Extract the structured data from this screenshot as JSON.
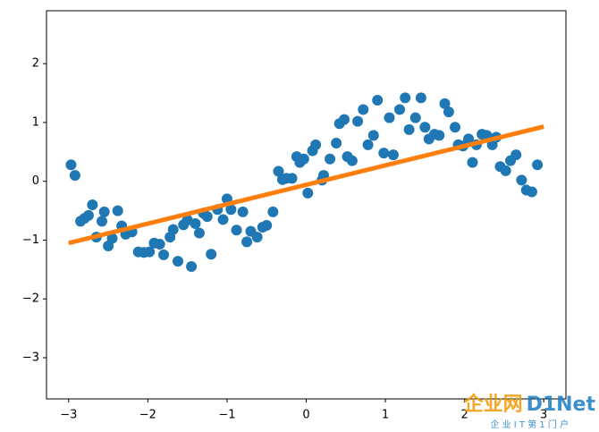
{
  "chart_data": {
    "type": "scatter",
    "xlim": [
      -3.28,
      3.28
    ],
    "ylim": [
      -3.7,
      2.9
    ],
    "xticks": [
      {
        "value": -3,
        "label": "−3"
      },
      {
        "value": -2,
        "label": "−2"
      },
      {
        "value": -1,
        "label": "−1"
      },
      0,
      1,
      2,
      3
    ],
    "yticks": [
      {
        "value": -3,
        "label": "−3"
      },
      {
        "value": -2,
        "label": "−2"
      },
      {
        "value": -1,
        "label": "−1"
      },
      0,
      1,
      2
    ],
    "series": [
      {
        "type": "scatter",
        "color": "#1f77b4",
        "x": [
          -2.97,
          -2.92,
          -2.85,
          -2.8,
          -2.75,
          -2.7,
          -2.65,
          -2.58,
          -2.55,
          -2.5,
          -2.45,
          -2.38,
          -2.33,
          -2.28,
          -2.2,
          -2.12,
          -2.05,
          -1.98,
          -1.92,
          -1.85,
          -1.8,
          -1.72,
          -1.68,
          -1.62,
          -1.55,
          -1.5,
          -1.45,
          -1.4,
          -1.35,
          -1.3,
          -1.25,
          -1.2,
          -1.12,
          -1.05,
          -1.0,
          -0.95,
          -0.88,
          -0.8,
          -0.75,
          -0.7,
          -0.62,
          -0.55,
          -0.5,
          -0.42,
          -0.35,
          -0.3,
          -0.25,
          -0.18,
          -0.12,
          -0.08,
          -0.03,
          0.02,
          0.08,
          0.12,
          0.2,
          0.22,
          0.3,
          0.38,
          0.42,
          0.48,
          0.52,
          0.58,
          0.65,
          0.72,
          0.78,
          0.85,
          0.9,
          0.98,
          1.05,
          1.1,
          1.18,
          1.25,
          1.3,
          1.38,
          1.45,
          1.5,
          1.55,
          1.62,
          1.68,
          1.75,
          1.8,
          1.88,
          1.92,
          1.98,
          2.05,
          2.1,
          2.15,
          2.22,
          2.28,
          2.35,
          2.4,
          2.45,
          2.52,
          2.58,
          2.65,
          2.72,
          2.78,
          2.85,
          2.92
        ],
        "values": [
          0.28,
          0.1,
          -0.68,
          -0.63,
          -0.58,
          -0.4,
          -0.95,
          -0.68,
          -0.52,
          -1.1,
          -0.97,
          -0.5,
          -0.76,
          -0.9,
          -0.86,
          -1.2,
          -1.21,
          -1.2,
          -1.05,
          -1.07,
          -1.25,
          -0.95,
          -0.82,
          -1.36,
          -0.74,
          -0.66,
          -1.45,
          -0.72,
          -0.88,
          -0.54,
          -0.6,
          -1.24,
          -0.48,
          -0.65,
          -0.3,
          -0.48,
          -0.83,
          -0.52,
          -1.03,
          -0.85,
          -0.95,
          -0.78,
          -0.75,
          -0.52,
          0.17,
          0.03,
          0.05,
          0.05,
          0.42,
          0.32,
          0.38,
          -0.2,
          0.52,
          0.62,
          0.02,
          0.1,
          0.38,
          0.65,
          0.98,
          1.05,
          0.42,
          0.35,
          1.02,
          1.22,
          0.62,
          0.78,
          1.38,
          0.48,
          1.08,
          0.45,
          1.22,
          1.42,
          0.88,
          1.08,
          1.42,
          0.92,
          0.72,
          0.8,
          0.78,
          1.32,
          1.18,
          0.92,
          0.62,
          0.6,
          0.72,
          0.32,
          0.62,
          0.8,
          0.78,
          0.62,
          0.75,
          0.25,
          0.18,
          0.35,
          0.45,
          0.02,
          -0.15,
          -0.18,
          0.28
        ]
      },
      {
        "type": "line",
        "color": "#ff7f0e",
        "x": [
          -3,
          3
        ],
        "values": [
          -1.05,
          0.93
        ]
      }
    ]
  },
  "watermark": {
    "brand": "企业网",
    "logo": "D1Net",
    "slogan": "企 业 I T 第 1 门 户"
  }
}
